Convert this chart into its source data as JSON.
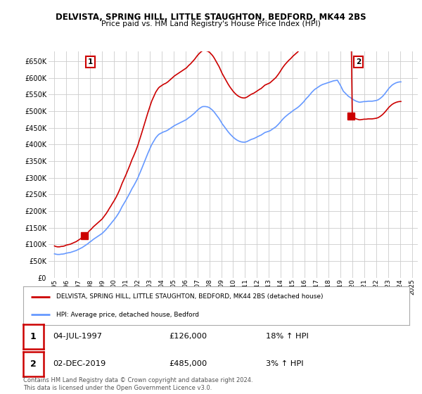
{
  "title": "DELVISTA, SPRING HILL, LITTLE STAUGHTON, BEDFORD, MK44 2BS",
  "subtitle": "Price paid vs. HM Land Registry's House Price Index (HPI)",
  "ylabel_ticks": [
    "£0",
    "£50K",
    "£100K",
    "£150K",
    "£200K",
    "£250K",
    "£300K",
    "£350K",
    "£400K",
    "£450K",
    "£500K",
    "£550K",
    "£600K",
    "£650K"
  ],
  "ytick_vals": [
    0,
    50000,
    100000,
    150000,
    200000,
    250000,
    300000,
    350000,
    400000,
    450000,
    500000,
    550000,
    600000,
    650000
  ],
  "ylim": [
    0,
    680000
  ],
  "xlim_start": 1994.5,
  "xlim_end": 2025.5,
  "xtick_labels": [
    "1995",
    "1996",
    "1997",
    "1998",
    "1999",
    "2000",
    "2001",
    "2002",
    "2003",
    "2004",
    "2005",
    "2006",
    "2007",
    "2008",
    "2009",
    "2010",
    "2011",
    "2012",
    "2013",
    "2014",
    "2015",
    "2016",
    "2017",
    "2018",
    "2019",
    "2020",
    "2021",
    "2022",
    "2023",
    "2024",
    "2025"
  ],
  "xtick_vals": [
    1995,
    1996,
    1997,
    1998,
    1999,
    2000,
    2001,
    2002,
    2003,
    2004,
    2005,
    2006,
    2007,
    2008,
    2009,
    2010,
    2011,
    2012,
    2013,
    2014,
    2015,
    2016,
    2017,
    2018,
    2019,
    2020,
    2021,
    2022,
    2023,
    2024,
    2025
  ],
  "hpi_color": "#6699ff",
  "house_color": "#cc0000",
  "marker1_x": 1997.5,
  "marker1_y": 126000,
  "marker2_x": 2019.917,
  "marker2_y": 485000,
  "legend_line1": "DELVISTA, SPRING HILL, LITTLE STAUGHTON, BEDFORD, MK44 2BS (detached house)",
  "legend_line2": "HPI: Average price, detached house, Bedford",
  "info1_num": "1",
  "info1_date": "04-JUL-1997",
  "info1_price": "£126,000",
  "info1_hpi": "18% ↑ HPI",
  "info2_num": "2",
  "info2_date": "02-DEC-2019",
  "info2_price": "£485,000",
  "info2_hpi": "3% ↑ HPI",
  "footer": "Contains HM Land Registry data © Crown copyright and database right 2024.\nThis data is licensed under the Open Government Licence v3.0.",
  "bg_color": "#ffffff",
  "grid_color": "#cccccc",
  "hpi_data_y": [
    72000,
    71000,
    70500,
    70000,
    70000,
    70000,
    70500,
    71000,
    71000,
    71500,
    72000,
    73000,
    74000,
    74500,
    75000,
    75500,
    76000,
    77000,
    78000,
    79000,
    80000,
    81000,
    82000,
    83500,
    85000,
    86500,
    88000,
    89500,
    91000,
    93000,
    95000,
    97000,
    99000,
    101000,
    103000,
    106000,
    108000,
    110000,
    112500,
    115000,
    117000,
    119000,
    121000,
    123000,
    125000,
    127000,
    129000,
    131000,
    133000,
    136000,
    139000,
    142000,
    145000,
    148500,
    152000,
    156000,
    159500,
    163000,
    167000,
    170500,
    174000,
    178000,
    182000,
    186500,
    191000,
    196000,
    201000,
    207000,
    213000,
    218000,
    223000,
    228000,
    233000,
    238500,
    244000,
    249500,
    255000,
    261000,
    267000,
    272000,
    277000,
    282500,
    288000,
    294000,
    300000,
    307000,
    314000,
    321000,
    328500,
    336000,
    344000,
    351500,
    359000,
    366000,
    373000,
    380000,
    387000,
    393500,
    400000,
    405000,
    410000,
    415000,
    420000,
    423500,
    427000,
    430000,
    432000,
    433500,
    435000,
    436500,
    438000,
    439000,
    440000,
    441500,
    443000,
    445000,
    447000,
    449000,
    451000,
    453000,
    455000,
    457000,
    458500,
    460000,
    461500,
    463000,
    464500,
    466000,
    467500,
    469000,
    470500,
    472000,
    473500,
    475000,
    477500,
    480000,
    482000,
    484000,
    486500,
    489000,
    491500,
    494000,
    497000,
    500000,
    503000,
    505500,
    508000,
    510000,
    512000,
    513500,
    514000,
    514000,
    514000,
    513500,
    513000,
    512000,
    510500,
    508500,
    506000,
    503500,
    500500,
    497000,
    493000,
    489000,
    485000,
    481000,
    477000,
    472000,
    467000,
    462000,
    458000,
    454000,
    450000,
    446000,
    442000,
    438000,
    434500,
    431000,
    428000,
    425000,
    422000,
    419500,
    417000,
    415000,
    413000,
    411500,
    410000,
    409000,
    408000,
    407500,
    407000,
    407000,
    407000,
    408000,
    409000,
    410500,
    412000,
    413500,
    415000,
    416000,
    417000,
    418000,
    419500,
    421000,
    422500,
    424000,
    425500,
    427000,
    428000,
    430000,
    432000,
    434000,
    436000,
    437000,
    438000,
    439000,
    440000,
    441000,
    443000,
    445000,
    447000,
    449000,
    451000,
    453000,
    456000,
    459000,
    462000,
    465500,
    469000,
    472500,
    476000,
    479000,
    482000,
    484500,
    487000,
    489500,
    492000,
    494000,
    496000,
    498500,
    501000,
    503000,
    505000,
    507000,
    509000,
    511000,
    513500,
    516000,
    519000,
    522000,
    525000,
    528000,
    532000,
    535500,
    539000,
    542000,
    545000,
    549000,
    552000,
    556000,
    559000,
    562000,
    565000,
    567000,
    569000,
    571000,
    573000,
    575000,
    577000,
    578500,
    580000,
    581000,
    582000,
    583000,
    584000,
    585000,
    586000,
    587000,
    588000,
    589000,
    590000,
    591000,
    591500,
    592000,
    592500,
    593000,
    588000,
    583000,
    578000,
    572000,
    566000,
    560000,
    557000,
    554000,
    551000,
    548000,
    545000,
    543000,
    541000,
    539000,
    537000,
    535000,
    533000,
    531500,
    530000,
    529000,
    528000,
    527000,
    527000,
    527500,
    528000,
    528500,
    529000,
    529000,
    529000,
    529500,
    530000,
    530000,
    530000,
    530000,
    530000,
    530500,
    531000,
    531500,
    532000,
    533000,
    534000,
    536000,
    538000,
    540500,
    543000,
    546000,
    549500,
    553000,
    557000,
    561000,
    565000,
    569000,
    572000,
    575000,
    578000,
    580000,
    582000,
    583500,
    585000,
    586000,
    587000,
    587500,
    588000,
    588000
  ]
}
